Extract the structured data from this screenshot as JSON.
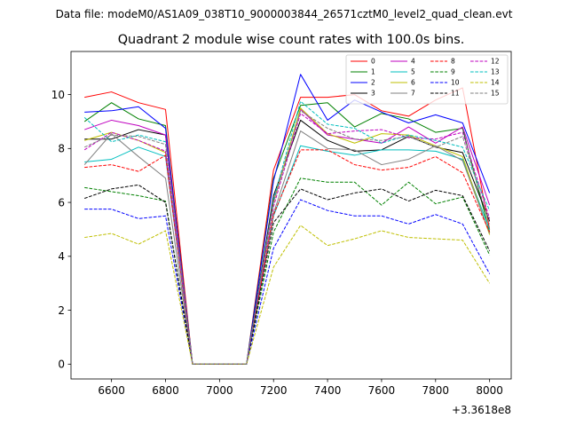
{
  "header": {
    "data_file": "Data file: modeM0/AS1A09_038T10_9000003844_26571cztM0_level2_quad_clean.evt"
  },
  "chart_data": {
    "type": "line",
    "title": "Quadrant 2 module wise count rates with 100.0s bins.",
    "xlabel": "",
    "ylabel": "",
    "x_offset_label": "+3.3618e8",
    "x": [
      6500,
      6600,
      6700,
      6800,
      6900,
      7000,
      7100,
      7200,
      7300,
      7400,
      7500,
      7600,
      7700,
      7800,
      7900,
      8000
    ],
    "xlim": [
      6450,
      8080
    ],
    "ylim": [
      -0.55,
      11.6
    ],
    "xticks": [
      6600,
      6800,
      7000,
      7200,
      7400,
      7600,
      7800,
      8000
    ],
    "xtick_labels": [
      "6600",
      "6800",
      "7000",
      "7200",
      "7400",
      "7600",
      "7800",
      "8000"
    ],
    "yticks": [
      0,
      2,
      4,
      6,
      8,
      10
    ],
    "ytick_labels": [
      "0",
      "2",
      "4",
      "6",
      "8",
      "10"
    ],
    "grid": false,
    "legend_position": "top-right",
    "series": [
      {
        "name": "0",
        "color": "#ff0000",
        "dash": "solid",
        "values": [
          9.9,
          10.1,
          9.7,
          9.45,
          0,
          0,
          0,
          7.2,
          9.9,
          9.9,
          10.0,
          9.4,
          9.2,
          9.8,
          10.25,
          5.0
        ]
      },
      {
        "name": "1",
        "color": "#008000",
        "dash": "solid",
        "values": [
          9.0,
          9.7,
          9.1,
          8.85,
          0,
          0,
          0,
          6.9,
          9.6,
          9.7,
          8.8,
          9.3,
          9.1,
          8.6,
          8.75,
          4.9
        ]
      },
      {
        "name": "2",
        "color": "#0000ff",
        "dash": "solid",
        "values": [
          9.35,
          9.4,
          9.55,
          8.75,
          0,
          0,
          0,
          6.8,
          10.75,
          9.05,
          9.8,
          9.35,
          8.95,
          9.25,
          8.95,
          6.35
        ]
      },
      {
        "name": "3",
        "color": "#000000",
        "dash": "solid",
        "values": [
          8.35,
          8.35,
          8.7,
          8.5,
          0,
          0,
          0,
          6.25,
          9.05,
          8.3,
          7.9,
          7.95,
          8.45,
          8.05,
          7.85,
          5.3
        ]
      },
      {
        "name": "4",
        "color": "#bf00bf",
        "dash": "solid",
        "values": [
          8.7,
          9.05,
          8.85,
          8.5,
          0,
          0,
          0,
          6.05,
          9.45,
          8.5,
          8.35,
          8.2,
          8.8,
          8.2,
          8.8,
          5.9
        ]
      },
      {
        "name": "5",
        "color": "#00bfbf",
        "dash": "solid",
        "values": [
          7.5,
          7.6,
          8.05,
          7.7,
          0,
          0,
          0,
          5.5,
          8.1,
          7.9,
          7.75,
          7.95,
          7.95,
          7.9,
          7.6,
          5.0
        ]
      },
      {
        "name": "6",
        "color": "#bfbf00",
        "dash": "solid",
        "values": [
          8.3,
          8.6,
          8.3,
          7.85,
          0,
          0,
          0,
          6.0,
          9.5,
          8.55,
          8.2,
          8.55,
          8.5,
          8.1,
          7.7,
          4.8
        ]
      },
      {
        "name": "7",
        "color": "#808080",
        "dash": "solid",
        "values": [
          7.4,
          8.55,
          7.7,
          6.9,
          0,
          0,
          0,
          5.6,
          8.65,
          8.0,
          7.95,
          7.4,
          7.6,
          8.1,
          7.55,
          4.85
        ]
      },
      {
        "name": "8",
        "color": "#ff0000",
        "dash": "dashed",
        "values": [
          7.3,
          7.4,
          7.15,
          7.75,
          0,
          0,
          0,
          5.55,
          7.95,
          7.95,
          7.4,
          7.2,
          7.3,
          7.7,
          7.1,
          4.9
        ]
      },
      {
        "name": "9",
        "color": "#008000",
        "dash": "dashed",
        "values": [
          6.55,
          6.4,
          6.25,
          6.05,
          0,
          0,
          0,
          4.9,
          6.9,
          6.75,
          6.75,
          5.9,
          6.75,
          5.95,
          6.2,
          4.05
        ]
      },
      {
        "name": "10",
        "color": "#0000ff",
        "dash": "dashed",
        "values": [
          5.75,
          5.75,
          5.4,
          5.5,
          0,
          0,
          0,
          4.3,
          6.1,
          5.7,
          5.5,
          5.5,
          5.2,
          5.55,
          5.2,
          3.35
        ]
      },
      {
        "name": "11",
        "color": "#000000",
        "dash": "dashed",
        "values": [
          6.15,
          6.5,
          6.65,
          6.0,
          0,
          0,
          0,
          5.25,
          6.5,
          6.1,
          6.35,
          6.5,
          6.05,
          6.45,
          6.25,
          4.2
        ]
      },
      {
        "name": "12",
        "color": "#bf00bf",
        "dash": "dashed",
        "values": [
          7.95,
          8.6,
          8.3,
          7.9,
          0,
          0,
          0,
          5.85,
          9.3,
          8.55,
          8.65,
          8.7,
          8.4,
          8.35,
          8.6,
          5.4
        ]
      },
      {
        "name": "13",
        "color": "#00bfbf",
        "dash": "dashed",
        "values": [
          9.15,
          8.25,
          8.5,
          8.25,
          0,
          0,
          0,
          6.1,
          9.75,
          8.9,
          8.75,
          8.2,
          8.5,
          8.3,
          8.05,
          5.7
        ]
      },
      {
        "name": "14",
        "color": "#bfbf00",
        "dash": "dashed",
        "values": [
          4.7,
          4.85,
          4.45,
          4.95,
          0,
          0,
          0,
          3.6,
          5.15,
          4.4,
          4.65,
          4.95,
          4.7,
          4.65,
          4.6,
          3.0
        ]
      },
      {
        "name": "15",
        "color": "#808080",
        "dash": "dashed",
        "values": [
          8.05,
          8.5,
          8.45,
          8.15,
          0,
          0,
          0,
          6.0,
          9.4,
          8.75,
          8.35,
          8.3,
          8.45,
          8.05,
          8.45,
          5.2
        ]
      }
    ]
  }
}
